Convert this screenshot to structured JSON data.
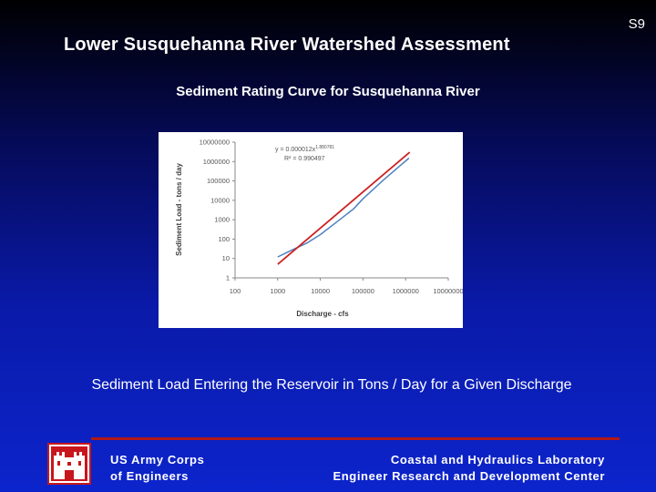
{
  "slide": {
    "number": "S9"
  },
  "header": {
    "title": "Lower Susquehanna River Watershed Assessment"
  },
  "subtitle": "Sediment Rating Curve for Susquehanna River",
  "caption": "Sediment Load Entering the Reservoir in Tons / Day for a Given Discharge",
  "footer": {
    "org_line1": "US Army Corps",
    "org_line2": "of Engineers",
    "lab_line1": "Coastal and Hydraulics Laboratory",
    "lab_line2": "Engineer Research and Development Center",
    "rule_color": "#b01818",
    "logo_icon": "castle-icon"
  },
  "chart_data": {
    "type": "line",
    "title": "",
    "xlabel": "Discharge - cfs",
    "ylabel": "Sediment Load - tons / day",
    "x_scale": "log",
    "y_scale": "log",
    "xlim": [
      100,
      10000000
    ],
    "ylim": [
      1,
      10000000
    ],
    "x_ticks": [
      "100",
      "1000",
      "10000",
      "100000",
      "1000000",
      "10000000"
    ],
    "y_ticks": [
      "1",
      "10",
      "100",
      "1000",
      "10000",
      "100000",
      "1000000",
      "10000000"
    ],
    "grid": false,
    "equation": "y = 0.000012x^1.880781",
    "equation_base": "y = 0.000012x",
    "equation_exp": "1.880781",
    "r_squared": "R² = 0.990497",
    "series": [
      {
        "color": "#4f81bd",
        "x": [
          1000,
          2000,
          5000,
          10000,
          30000,
          60000,
          100000,
          300000,
          700000,
          1200000
        ],
        "y": [
          12,
          25,
          65,
          170,
          1100,
          3600,
          12000,
          110000,
          550000,
          1500000
        ]
      },
      {
        "color": "#cc2222",
        "x": [
          1000,
          1250000
        ],
        "y": [
          5,
          3000000
        ]
      }
    ]
  }
}
